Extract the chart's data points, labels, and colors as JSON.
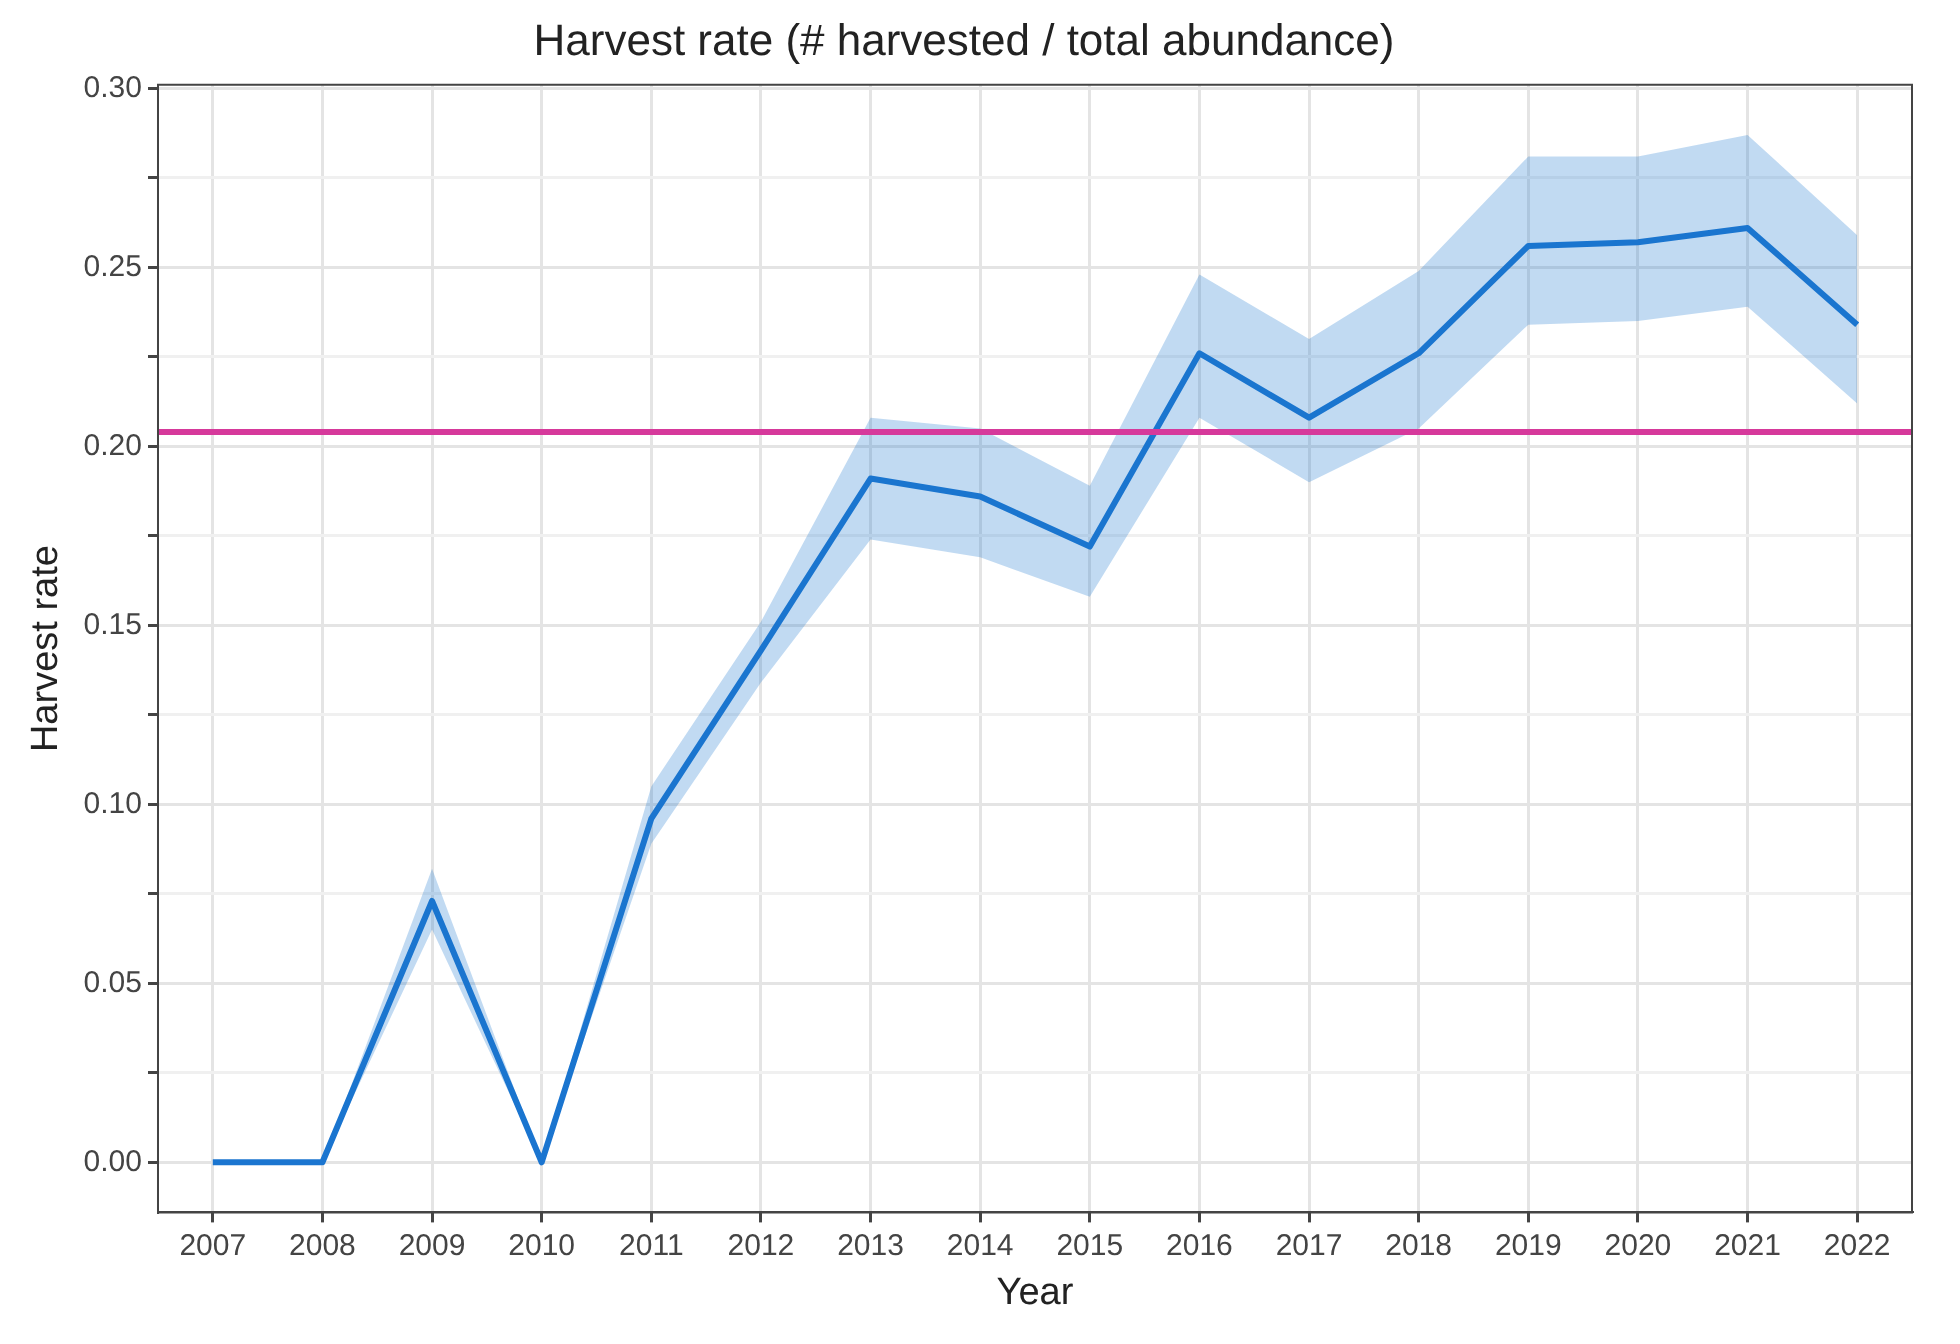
{
  "chart_data": {
    "type": "line",
    "title": "Harvest rate (# harvested / total abundance)",
    "xlabel": "Year",
    "ylabel": "Harvest rate",
    "categories": [
      "2007",
      "2008",
      "2009",
      "2010",
      "2011",
      "2012",
      "2013",
      "2014",
      "2015",
      "2016",
      "2017",
      "2018",
      "2019",
      "2020",
      "2021",
      "2022"
    ],
    "series": [
      {
        "color": "#1b75d0",
        "values": [
          0,
          0,
          0.073,
          0,
          0.096,
          0.143,
          0.191,
          0.186,
          0.172,
          0.226,
          0.208,
          0.226,
          0.256,
          0.257,
          0.261,
          0.234
        ],
        "lower": [
          0,
          0,
          0.065,
          0,
          0.089,
          0.134,
          0.174,
          0.169,
          0.158,
          0.208,
          0.19,
          0.205,
          0.234,
          0.235,
          0.239,
          0.212
        ],
        "upper": [
          0,
          0,
          0.082,
          0,
          0.105,
          0.151,
          0.208,
          0.205,
          0.189,
          0.248,
          0.23,
          0.249,
          0.281,
          0.281,
          0.287,
          0.259
        ]
      }
    ],
    "ylim": [
      -0.014,
      0.301
    ],
    "yticks": [
      {
        "value": 0,
        "label": "0.00"
      },
      {
        "value": 0.025,
        "label": null
      },
      {
        "value": 0.05,
        "label": "0.05"
      },
      {
        "value": 0.075,
        "label": null
      },
      {
        "value": 0.1,
        "label": "0.10"
      },
      {
        "value": 0.125,
        "label": null
      },
      {
        "value": 0.15,
        "label": "0.15"
      },
      {
        "value": 0.175,
        "label": null
      },
      {
        "value": 0.2,
        "label": "0.20"
      },
      {
        "value": 0.225,
        "label": null
      },
      {
        "value": 0.25,
        "label": "0.25"
      },
      {
        "value": 0.275,
        "label": null
      },
      {
        "value": 0.3,
        "label": "0.30"
      }
    ],
    "ref_lines": [
      {
        "axis": "y",
        "value": 0.204,
        "color": "#d6399b"
      }
    ],
    "grid": true,
    "legend": false,
    "marker": "none",
    "line_style": "solid"
  }
}
